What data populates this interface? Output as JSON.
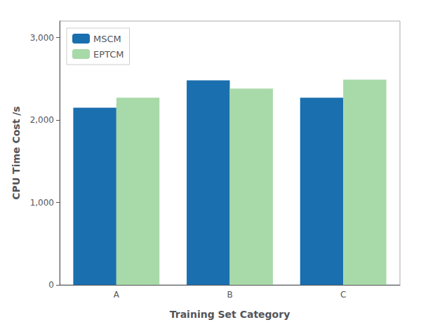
{
  "chart_data": {
    "type": "bar",
    "categories": [
      "A",
      "B",
      "C"
    ],
    "series": [
      {
        "name": "MSCM",
        "color": "#1a6faf",
        "values": [
          2150,
          2480,
          2270
        ]
      },
      {
        "name": "EPTCM",
        "color": "#a8d9a8",
        "values": [
          2270,
          2380,
          2490
        ]
      }
    ],
    "xlabel": "Training Set Category",
    "ylabel": "CPU Time Cost /s",
    "ylim": [
      0,
      3200
    ],
    "yticks": [
      0,
      1000,
      2000,
      3000
    ],
    "grid": false,
    "legend": "upper left"
  }
}
